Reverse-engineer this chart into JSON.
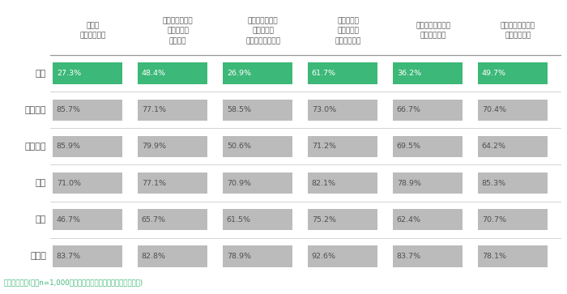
{
  "countries": [
    "日本",
    "アメリカ",
    "イギリス",
    "中国",
    "韓国",
    "インド"
  ],
  "columns": [
    "自分は\n大人だと思う",
    "自分は責任ある\n社会の一員\nだと思う",
    "自分の行動で、\n国や社会を\n変えられると思う",
    "国や社会に\n役立つ事を\nしたいと思う",
    "慈善活動のために\n寄付をしたい",
    "ボランティア活動\nに参加したい"
  ],
  "values": [
    [
      27.3,
      48.4,
      26.9,
      61.7,
      36.2,
      49.7
    ],
    [
      85.7,
      77.1,
      58.5,
      73.0,
      66.7,
      70.4
    ],
    [
      85.9,
      79.9,
      50.6,
      71.2,
      69.5,
      64.2
    ],
    [
      71.0,
      77.1,
      70.9,
      82.1,
      78.9,
      85.3
    ],
    [
      46.7,
      65.7,
      61.5,
      75.2,
      62.4,
      70.7
    ],
    [
      83.7,
      82.8,
      78.9,
      92.6,
      83.7,
      78.1
    ]
  ],
  "japan_color": "#3cb878",
  "other_color": "#bbbbbb",
  "text_color": "#505050",
  "header_color": "#505050",
  "value_text_color_japan": "#ffffff",
  "value_text_color_other": "#505050",
  "bg_color": "#ffffff",
  "footnote": "社会参加意識(各国n=1,000、各項目に「はい」と答えた人の割合)",
  "footnote_color": "#3cb878",
  "row_separator_color": "#cccccc",
  "header_separator_color": "#999999"
}
